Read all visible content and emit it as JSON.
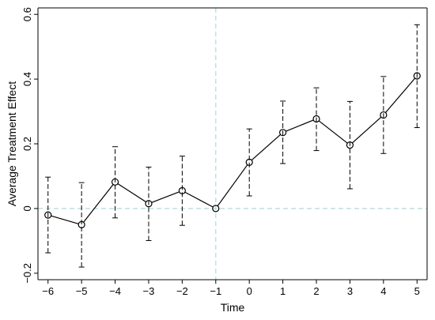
{
  "chart_data": {
    "type": "line",
    "xlabel": "Time",
    "ylabel": "Average Treatment Effect",
    "x": [
      -6,
      -5,
      -4,
      -3,
      -2,
      -1,
      0,
      1,
      2,
      3,
      4,
      5
    ],
    "x_tick_labels": [
      "−6",
      "−5",
      "−4",
      "−3",
      "−2",
      "−1",
      "0",
      "1",
      "2",
      "3",
      "4",
      "5"
    ],
    "y_ticks": [
      -0.2,
      0,
      0.2,
      0.4,
      0.6
    ],
    "y_tick_labels": [
      "−0.2",
      "0",
      "0.2",
      "0.4",
      "0.6"
    ],
    "xlim": [
      -6.3,
      5.3
    ],
    "ylim": [
      -0.22,
      0.62
    ],
    "series": [
      {
        "values": [
          -0.02,
          -0.05,
          0.082,
          0.015,
          0.055,
          0.0,
          0.143,
          0.235,
          0.277,
          0.196,
          0.289,
          0.41
        ],
        "ci_lower": [
          -0.137,
          -0.181,
          -0.029,
          -0.099,
          -0.052,
          0.0,
          0.039,
          0.139,
          0.179,
          0.061,
          0.17,
          0.25
        ],
        "ci_upper": [
          0.097,
          0.08,
          0.191,
          0.128,
          0.162,
          0.0,
          0.246,
          0.332,
          0.373,
          0.331,
          0.408,
          0.568
        ]
      }
    ],
    "reference_lines": {
      "vertical_x": -1,
      "horizontal_y": 0
    },
    "colors": {
      "line": "#000000",
      "reference": "#a8dde0"
    },
    "grid": false
  }
}
